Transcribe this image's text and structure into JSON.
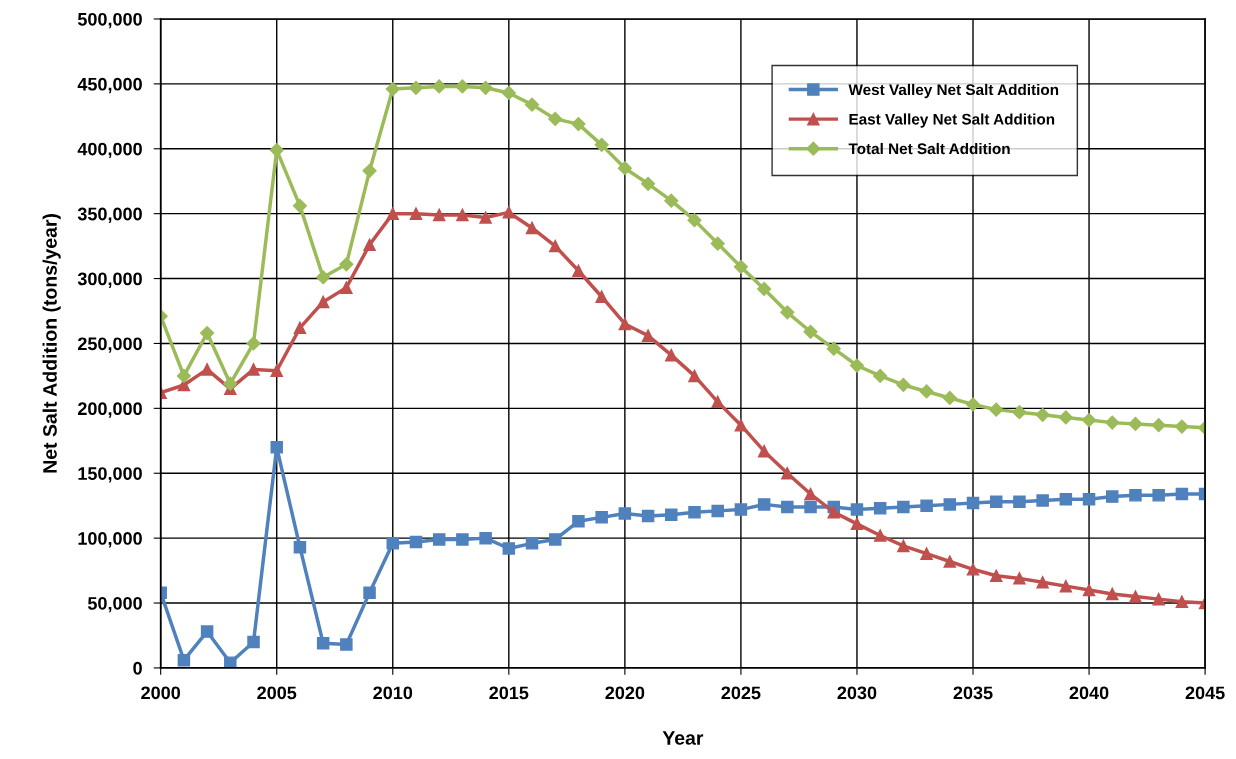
{
  "chart_data": {
    "type": "line",
    "xlabel": "Year",
    "ylabel": "Net Salt Addition (tons/year)",
    "x": [
      2000,
      2001,
      2002,
      2003,
      2004,
      2005,
      2006,
      2007,
      2008,
      2009,
      2010,
      2011,
      2012,
      2013,
      2014,
      2015,
      2016,
      2017,
      2018,
      2019,
      2020,
      2021,
      2022,
      2023,
      2024,
      2025,
      2026,
      2027,
      2028,
      2029,
      2030,
      2031,
      2032,
      2033,
      2034,
      2035,
      2036,
      2037,
      2038,
      2039,
      2040,
      2041,
      2042,
      2043,
      2044,
      2045
    ],
    "series": [
      {
        "name": "West Valley Net Salt Addition",
        "color": "#4f81bd",
        "marker": "square",
        "values": [
          58000,
          6000,
          28000,
          4000,
          20000,
          170000,
          93000,
          19000,
          18000,
          58000,
          96000,
          97000,
          99000,
          99000,
          100000,
          92000,
          96000,
          99000,
          113000,
          116000,
          119000,
          117000,
          118000,
          120000,
          121000,
          122000,
          126000,
          124000,
          124000,
          124000,
          122000,
          123000,
          124000,
          125000,
          126000,
          127000,
          128000,
          128000,
          129000,
          130000,
          130000,
          132000,
          133000,
          133000,
          134000,
          134000
        ]
      },
      {
        "name": "East Valley Net Salt Addition",
        "color": "#c0504d",
        "marker": "triangle",
        "values": [
          212000,
          218000,
          230000,
          215000,
          230000,
          229000,
          262000,
          282000,
          293000,
          326000,
          350000,
          350000,
          349000,
          349000,
          347000,
          351000,
          339000,
          325000,
          306000,
          286000,
          265000,
          256000,
          241000,
          225000,
          205000,
          187000,
          167000,
          150000,
          134000,
          120000,
          111000,
          102000,
          94000,
          88000,
          82000,
          76000,
          71000,
          69000,
          66000,
          63000,
          60000,
          57000,
          55000,
          53000,
          51000,
          50000
        ]
      },
      {
        "name": "Total Net Salt Addition",
        "color": "#9bbb59",
        "marker": "diamond",
        "values": [
          271000,
          225000,
          258000,
          219000,
          250000,
          399000,
          356000,
          301000,
          311000,
          383000,
          446000,
          447000,
          448000,
          448000,
          447000,
          443000,
          434000,
          423000,
          419000,
          403000,
          385000,
          373000,
          360000,
          345000,
          327000,
          309000,
          292000,
          274000,
          259000,
          246000,
          233000,
          225000,
          218000,
          213000,
          208000,
          203000,
          199000,
          197000,
          195000,
          193000,
          191000,
          189000,
          188000,
          187000,
          186000,
          185000
        ]
      }
    ],
    "xlim": [
      2000,
      2045
    ],
    "xticks": [
      2000,
      2005,
      2010,
      2015,
      2020,
      2025,
      2030,
      2035,
      2040,
      2045
    ],
    "ylim": [
      0,
      500000
    ],
    "yticks": [
      {
        "value": 0,
        "label": "0"
      },
      {
        "value": 50000,
        "label": "50,000"
      },
      {
        "value": 100000,
        "label": "100,000"
      },
      {
        "value": 150000,
        "label": "150,000"
      },
      {
        "value": 200000,
        "label": "200,000"
      },
      {
        "value": 250000,
        "label": "250,000"
      },
      {
        "value": 300000,
        "label": "300,000"
      },
      {
        "value": 350000,
        "label": "350,000"
      },
      {
        "value": 400000,
        "label": "400,000"
      },
      {
        "value": 450000,
        "label": "450,000"
      },
      {
        "value": 500000,
        "label": "500,000"
      }
    ],
    "grid": true,
    "legend": "top right",
    "line_style": "solid"
  }
}
